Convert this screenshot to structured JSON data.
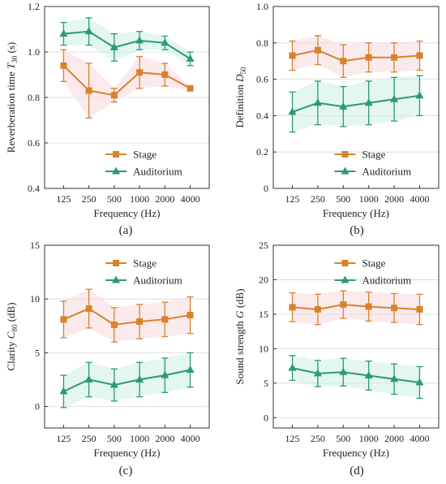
{
  "colors": {
    "stage": "#d9822b",
    "auditorium": "#2a9a72",
    "stage_band": "#f6d8dc",
    "auditorium_band": "#ccefe6",
    "grid": "#d8d8d8",
    "axis": "#333333"
  },
  "chart_data": [
    {
      "type": "line",
      "panel_label": "(a)",
      "categories": [
        "125",
        "250",
        "500",
        "1000",
        "2000",
        "4000"
      ],
      "xlabel": "Frequency (Hz)",
      "ylabel": {
        "main": "Reverberation time ",
        "var": "T",
        "sub": "30",
        "unit": " (s)"
      },
      "ylim": [
        0.4,
        1.2
      ],
      "yticks": [
        0.4,
        0.6,
        0.8,
        1.0,
        1.2
      ],
      "ytick_labels": [
        "0.4",
        "0.6",
        "0.8",
        "1.0",
        "1.2"
      ],
      "legend_position": "bottom-right",
      "grid": true,
      "series": [
        {
          "name": "Stage",
          "key": "stage",
          "marker": "square",
          "values": [
            0.94,
            0.83,
            0.81,
            0.91,
            0.9,
            0.84
          ],
          "errors": [
            0.07,
            0.12,
            0.03,
            0.07,
            0.05,
            0.01
          ]
        },
        {
          "name": "Auditorium",
          "key": "auditorium",
          "marker": "triangle",
          "values": [
            1.08,
            1.09,
            1.02,
            1.05,
            1.04,
            0.97
          ],
          "errors": [
            0.05,
            0.06,
            0.06,
            0.04,
            0.03,
            0.03
          ]
        }
      ]
    },
    {
      "type": "line",
      "panel_label": "(b)",
      "categories": [
        "125",
        "250",
        "500",
        "1000",
        "2000",
        "4000"
      ],
      "xlabel": "Frequency (Hz)",
      "ylabel": {
        "main": "Definition ",
        "var": "D",
        "sub": "50",
        "unit": ""
      },
      "ylim": [
        0,
        1.0
      ],
      "yticks": [
        0,
        0.2,
        0.4,
        0.6,
        0.8,
        1.0
      ],
      "ytick_labels": [
        "0",
        "0.2",
        "0.4",
        "0.6",
        "0.8",
        "1.0"
      ],
      "legend_position": "bottom-right",
      "grid": true,
      "series": [
        {
          "name": "Stage",
          "key": "stage",
          "marker": "square",
          "values": [
            0.73,
            0.76,
            0.7,
            0.72,
            0.72,
            0.73
          ],
          "errors": [
            0.08,
            0.08,
            0.09,
            0.08,
            0.08,
            0.08
          ]
        },
        {
          "name": "Auditorium",
          "key": "auditorium",
          "marker": "triangle",
          "values": [
            0.42,
            0.47,
            0.45,
            0.47,
            0.49,
            0.51
          ],
          "errors": [
            0.11,
            0.12,
            0.11,
            0.12,
            0.12,
            0.11
          ]
        }
      ]
    },
    {
      "type": "line",
      "panel_label": "(c)",
      "categories": [
        "125",
        "250",
        "500",
        "1000",
        "2000",
        "4000"
      ],
      "xlabel": "Frequency (Hz)",
      "ylabel": {
        "main": "Clarity ",
        "var": "C",
        "sub": "80",
        "unit": " (dB)"
      },
      "ylim": [
        -2,
        15
      ],
      "yticks": [
        0,
        5,
        10,
        15
      ],
      "ytick_labels": [
        "0",
        "5",
        "10",
        "15"
      ],
      "legend_position": "top-right",
      "grid": true,
      "series": [
        {
          "name": "Stage",
          "key": "stage",
          "marker": "square",
          "values": [
            8.1,
            9.1,
            7.6,
            7.9,
            8.1,
            8.5
          ],
          "errors": [
            1.7,
            1.8,
            1.6,
            1.6,
            1.6,
            1.7
          ]
        },
        {
          "name": "Auditorium",
          "key": "auditorium",
          "marker": "triangle",
          "values": [
            1.4,
            2.5,
            2.0,
            2.5,
            2.9,
            3.4
          ],
          "errors": [
            1.5,
            1.6,
            1.5,
            1.6,
            1.6,
            1.6
          ]
        }
      ]
    },
    {
      "type": "line",
      "panel_label": "(d)",
      "categories": [
        "125",
        "250",
        "500",
        "1000",
        "2000",
        "4000"
      ],
      "xlabel": "Frequency (Hz)",
      "ylabel": {
        "main": "Sound strength ",
        "var": "G",
        "sub": "",
        "unit": " (dB)"
      },
      "ylim": [
        -1.5,
        25
      ],
      "yticks": [
        0,
        5,
        10,
        15,
        20,
        25
      ],
      "ytick_labels": [
        "0",
        "5",
        "10",
        "15",
        "20",
        "25"
      ],
      "legend_position": "top-right",
      "grid": true,
      "series": [
        {
          "name": "Stage",
          "key": "stage",
          "marker": "square",
          "values": [
            16.0,
            15.7,
            16.4,
            16.1,
            15.9,
            15.7
          ],
          "errors": [
            2.1,
            2.2,
            2.0,
            2.1,
            2.1,
            2.2
          ]
        },
        {
          "name": "Auditorium",
          "key": "auditorium",
          "marker": "triangle",
          "values": [
            7.2,
            6.4,
            6.6,
            6.1,
            5.6,
            5.1
          ],
          "errors": [
            1.8,
            1.9,
            2.0,
            2.1,
            2.2,
            2.3
          ]
        }
      ]
    }
  ]
}
